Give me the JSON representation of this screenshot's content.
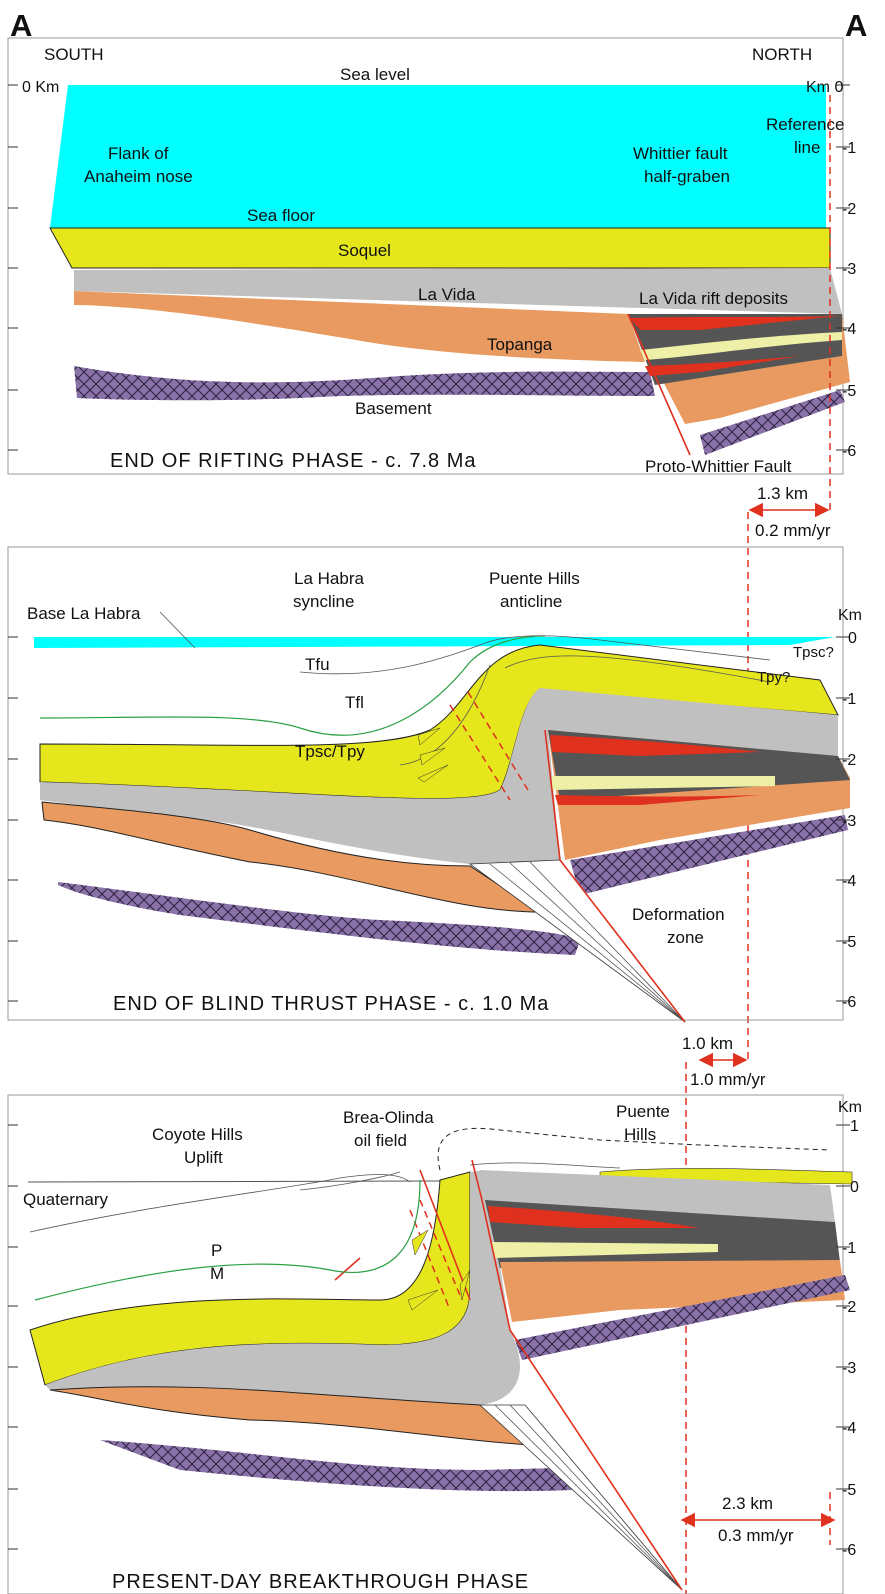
{
  "header": {
    "left_marker": "A",
    "right_marker": "A"
  },
  "panels": [
    {
      "title": "END OF RIFTING PHASE - c. 7.8 Ma",
      "south": "SOUTH",
      "north": "NORTH",
      "left_axis_label": "0 Km",
      "right_axis_label": "Km 0",
      "axis_ticks": [
        "-1",
        "-2",
        "-3",
        "-4",
        "-5",
        "-6"
      ],
      "labels": {
        "sea_level": "Sea level",
        "reference_line": [
          "Reference",
          "line"
        ],
        "flank": [
          "Flank of",
          "Anaheim nose"
        ],
        "half_graben": [
          "Whittier fault",
          "half-graben"
        ],
        "sea_floor": "Sea floor",
        "soquel": "Soquel",
        "la_vida": "La Vida",
        "rift_deposits": "La Vida rift deposits",
        "topanga": "Topanga",
        "basement": "Basement",
        "fault": "Proto-Whittier Fault"
      }
    },
    {
      "title": "END OF BLIND THRUST PHASE - c. 1.0 Ma",
      "axis_unit": "Km",
      "axis_ticks": [
        "0",
        "-1",
        "-2",
        "-3",
        "-4",
        "-5",
        "-6"
      ],
      "labels": {
        "syncline": [
          "La Habra",
          "syncline"
        ],
        "anticline": [
          "Puente Hills",
          "anticline"
        ],
        "base": "Base La Habra",
        "tfu": "Tfu",
        "tfl": "Tfl",
        "tpsc_tpy": "Tpsc/Tpy",
        "tpsc": "Tpsc?",
        "tpy": "Tpy?",
        "deformation": [
          "Deformation",
          "zone"
        ]
      }
    },
    {
      "title": "PRESENT-DAY BREAKTHROUGH PHASE",
      "axis_unit": "Km",
      "axis_ticks": [
        "1",
        "0",
        "-1",
        "-2",
        "-3",
        "-4",
        "-5",
        "-6"
      ],
      "labels": {
        "coyote": [
          "Coyote Hills",
          "Uplift"
        ],
        "brea": [
          "Brea-Olinda",
          "oil field"
        ],
        "puente": [
          "Puente",
          "Hills"
        ],
        "quaternary": "Quaternary",
        "p": "P",
        "m": "M"
      }
    }
  ],
  "offsets": [
    {
      "distance": "1.3 km",
      "rate": "0.2 mm/yr"
    },
    {
      "distance": "1.0 km",
      "rate": "1.0 mm/yr"
    },
    {
      "distance": "2.3 km",
      "rate": "0.3 mm/yr"
    }
  ]
}
